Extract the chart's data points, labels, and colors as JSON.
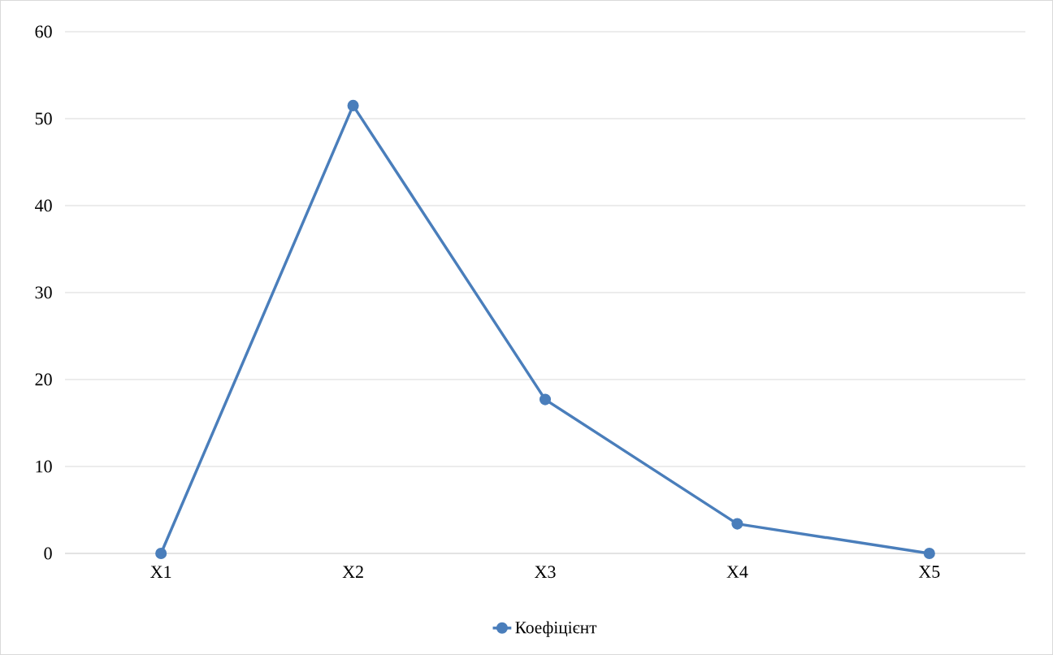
{
  "chart_data": {
    "type": "line",
    "categories": [
      "X1",
      "X2",
      "X3",
      "X4",
      "X5"
    ],
    "series": [
      {
        "name": "Коефіцієнт",
        "color": "#4a7ebb",
        "values": [
          0,
          51.5,
          17.7,
          3.4,
          0
        ]
      }
    ],
    "ylim": [
      0,
      60
    ],
    "yticks": [
      0,
      10,
      20,
      30,
      40,
      50,
      60
    ],
    "grid": "y",
    "legend": "bottom",
    "marker": "circle",
    "line_style": "solid"
  }
}
